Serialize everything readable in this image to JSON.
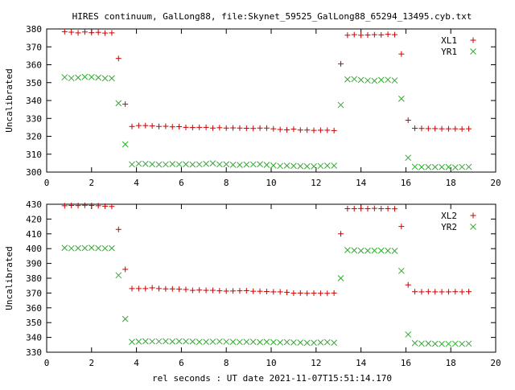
{
  "title": "HIRES continuum, GalLong88, file:Skynet_59525_GalLong88_65294_13495.cyb.txt",
  "xlabel": "rel seconds : UT date 2021-11-07T15:51:14.170",
  "colors": {
    "red": "#cc0000",
    "green": "#33aa33",
    "axis": "#000000",
    "background": "#ffffff"
  },
  "chart_data": [
    {
      "type": "scatter",
      "ylabel": "Uncalibrated",
      "xlim": [
        0,
        20
      ],
      "ylim": [
        300,
        380
      ],
      "x_ticks": [
        0,
        2,
        4,
        6,
        8,
        10,
        12,
        14,
        16,
        18,
        20
      ],
      "y_ticks": [
        300,
        310,
        320,
        330,
        340,
        350,
        360,
        370,
        380
      ],
      "grid": false,
      "legend_position": "top-right",
      "series": [
        {
          "name": "XL1",
          "marker": "plus",
          "color": "#cc0000",
          "x": [
            0.8,
            1.1,
            1.4,
            1.7,
            2.0,
            2.3,
            2.6,
            2.9,
            3.2,
            3.5,
            3.8,
            4.1,
            4.4,
            4.7,
            5.0,
            5.3,
            5.6,
            5.9,
            6.2,
            6.5,
            6.8,
            7.1,
            7.4,
            7.7,
            8.0,
            8.3,
            8.6,
            8.9,
            9.2,
            9.5,
            9.8,
            10.1,
            10.4,
            10.7,
            11.0,
            11.3,
            11.6,
            11.9,
            12.2,
            12.5,
            12.8,
            13.1,
            13.4,
            13.7,
            14.0,
            14.3,
            14.6,
            14.9,
            15.2,
            15.5,
            15.8,
            16.1,
            16.4,
            16.7,
            17.0,
            17.3,
            17.6,
            17.9,
            18.2,
            18.5,
            18.8
          ],
          "y": [
            378.5,
            378.2,
            377.8,
            378.3,
            377.9,
            378.1,
            377.7,
            377.8,
            363.5,
            338.0,
            325.5,
            326.0,
            326.0,
            325.8,
            325.5,
            325.6,
            325.3,
            325.4,
            325.0,
            324.9,
            325.0,
            325.0,
            324.6,
            324.8,
            324.6,
            324.7,
            324.6,
            324.5,
            324.4,
            324.6,
            324.6,
            324.2,
            323.8,
            323.6,
            324.0,
            323.5,
            323.5,
            323.3,
            323.4,
            323.4,
            323.2,
            360.5,
            376.5,
            376.8,
            376.5,
            376.6,
            376.8,
            376.7,
            377.0,
            376.8,
            366.0,
            329.0,
            324.5,
            324.4,
            324.3,
            324.3,
            324.2,
            324.2,
            324.2,
            324.1,
            324.2
          ]
        },
        {
          "name": "YR1",
          "marker": "cross",
          "color": "#33aa33",
          "x": [
            0.8,
            1.1,
            1.4,
            1.7,
            2.0,
            2.3,
            2.6,
            2.9,
            3.2,
            3.5,
            3.8,
            4.1,
            4.4,
            4.7,
            5.0,
            5.3,
            5.6,
            5.9,
            6.2,
            6.5,
            6.8,
            7.1,
            7.4,
            7.7,
            8.0,
            8.3,
            8.6,
            8.9,
            9.2,
            9.5,
            9.8,
            10.1,
            10.4,
            10.7,
            11.0,
            11.3,
            11.6,
            11.9,
            12.2,
            12.5,
            12.8,
            13.1,
            13.4,
            13.7,
            14.0,
            14.3,
            14.6,
            14.9,
            15.2,
            15.5,
            15.8,
            16.1,
            16.4,
            16.7,
            17.0,
            17.3,
            17.6,
            17.9,
            18.2,
            18.5,
            18.8
          ],
          "y": [
            353.0,
            352.5,
            352.8,
            353.2,
            353.1,
            352.8,
            352.4,
            352.4,
            338.5,
            315.5,
            304.3,
            304.7,
            304.6,
            304.4,
            304.2,
            304.3,
            304.5,
            304.3,
            304.4,
            304.2,
            304.3,
            304.6,
            304.9,
            304.3,
            304.4,
            304.1,
            304.0,
            304.2,
            304.3,
            304.4,
            304.0,
            303.7,
            303.4,
            303.6,
            303.5,
            303.3,
            303.2,
            303.2,
            303.4,
            303.6,
            303.6,
            337.5,
            351.8,
            352.0,
            351.5,
            351.2,
            351.0,
            351.5,
            351.6,
            351.2,
            341.0,
            308.0,
            303.0,
            302.8,
            302.8,
            302.8,
            302.8,
            302.8,
            302.6,
            302.9,
            302.9
          ]
        }
      ]
    },
    {
      "type": "scatter",
      "ylabel": "Uncalibrated",
      "xlim": [
        0,
        20
      ],
      "ylim": [
        330,
        430
      ],
      "x_ticks": [
        0,
        2,
        4,
        6,
        8,
        10,
        12,
        14,
        16,
        18,
        20
      ],
      "y_ticks": [
        330,
        340,
        350,
        360,
        370,
        380,
        390,
        400,
        410,
        420,
        430
      ],
      "grid": false,
      "legend_position": "top-right",
      "series": [
        {
          "name": "XL2",
          "marker": "plus",
          "color": "#cc0000",
          "x": [
            0.8,
            1.1,
            1.4,
            1.7,
            2.0,
            2.3,
            2.6,
            2.9,
            3.2,
            3.5,
            3.8,
            4.1,
            4.4,
            4.7,
            5.0,
            5.3,
            5.6,
            5.9,
            6.2,
            6.5,
            6.8,
            7.1,
            7.4,
            7.7,
            8.0,
            8.3,
            8.6,
            8.9,
            9.2,
            9.5,
            9.8,
            10.1,
            10.4,
            10.7,
            11.0,
            11.3,
            11.6,
            11.9,
            12.2,
            12.5,
            12.8,
            13.1,
            13.4,
            13.7,
            14.0,
            14.3,
            14.6,
            14.9,
            15.2,
            15.5,
            15.8,
            16.1,
            16.4,
            16.7,
            17.0,
            17.3,
            17.6,
            17.9,
            18.2,
            18.5,
            18.8
          ],
          "y": [
            429.0,
            429.2,
            429.1,
            429.3,
            429.2,
            429.0,
            428.7,
            428.5,
            413.0,
            386.0,
            373.0,
            373.0,
            373.0,
            373.5,
            373.0,
            372.8,
            372.8,
            372.6,
            372.4,
            371.8,
            372.0,
            371.8,
            371.8,
            371.5,
            371.3,
            371.4,
            371.5,
            371.6,
            371.2,
            371.2,
            371.0,
            370.8,
            370.8,
            370.5,
            369.9,
            370.0,
            369.8,
            369.9,
            369.8,
            369.8,
            370.0,
            410.0,
            427.0,
            427.0,
            427.1,
            427.0,
            427.2,
            427.0,
            427.0,
            426.9,
            415.0,
            375.5,
            370.9,
            370.8,
            370.9,
            370.8,
            370.8,
            370.8,
            370.9,
            370.8,
            370.9
          ]
        },
        {
          "name": "YR2",
          "marker": "cross",
          "color": "#33aa33",
          "x": [
            0.8,
            1.1,
            1.4,
            1.7,
            2.0,
            2.3,
            2.6,
            2.9,
            3.2,
            3.5,
            3.8,
            4.1,
            4.4,
            4.7,
            5.0,
            5.3,
            5.6,
            5.9,
            6.2,
            6.5,
            6.8,
            7.1,
            7.4,
            7.7,
            8.0,
            8.3,
            8.6,
            8.9,
            9.2,
            9.5,
            9.8,
            10.1,
            10.4,
            10.7,
            11.0,
            11.3,
            11.6,
            11.9,
            12.2,
            12.5,
            12.8,
            13.1,
            13.4,
            13.7,
            14.0,
            14.3,
            14.6,
            14.9,
            15.2,
            15.5,
            15.8,
            16.1,
            16.4,
            16.7,
            17.0,
            17.3,
            17.6,
            17.9,
            18.2,
            18.5,
            18.8
          ],
          "y": [
            400.5,
            400.2,
            400.3,
            400.4,
            400.6,
            400.3,
            400.2,
            400.3,
            382.0,
            352.5,
            337.0,
            337.2,
            337.4,
            337.3,
            337.3,
            337.4,
            337.2,
            337.4,
            337.3,
            337.2,
            337.0,
            337.0,
            337.1,
            337.3,
            337.1,
            337.0,
            336.9,
            337.0,
            337.0,
            336.8,
            337.0,
            336.8,
            336.6,
            336.8,
            336.6,
            336.5,
            336.3,
            336.4,
            336.6,
            336.8,
            336.4,
            380.0,
            399.0,
            398.8,
            398.6,
            398.6,
            398.7,
            398.7,
            398.6,
            398.5,
            385.0,
            342.0,
            336.2,
            335.8,
            335.9,
            335.7,
            335.6,
            335.6,
            335.8,
            335.6,
            335.8
          ]
        }
      ]
    }
  ]
}
